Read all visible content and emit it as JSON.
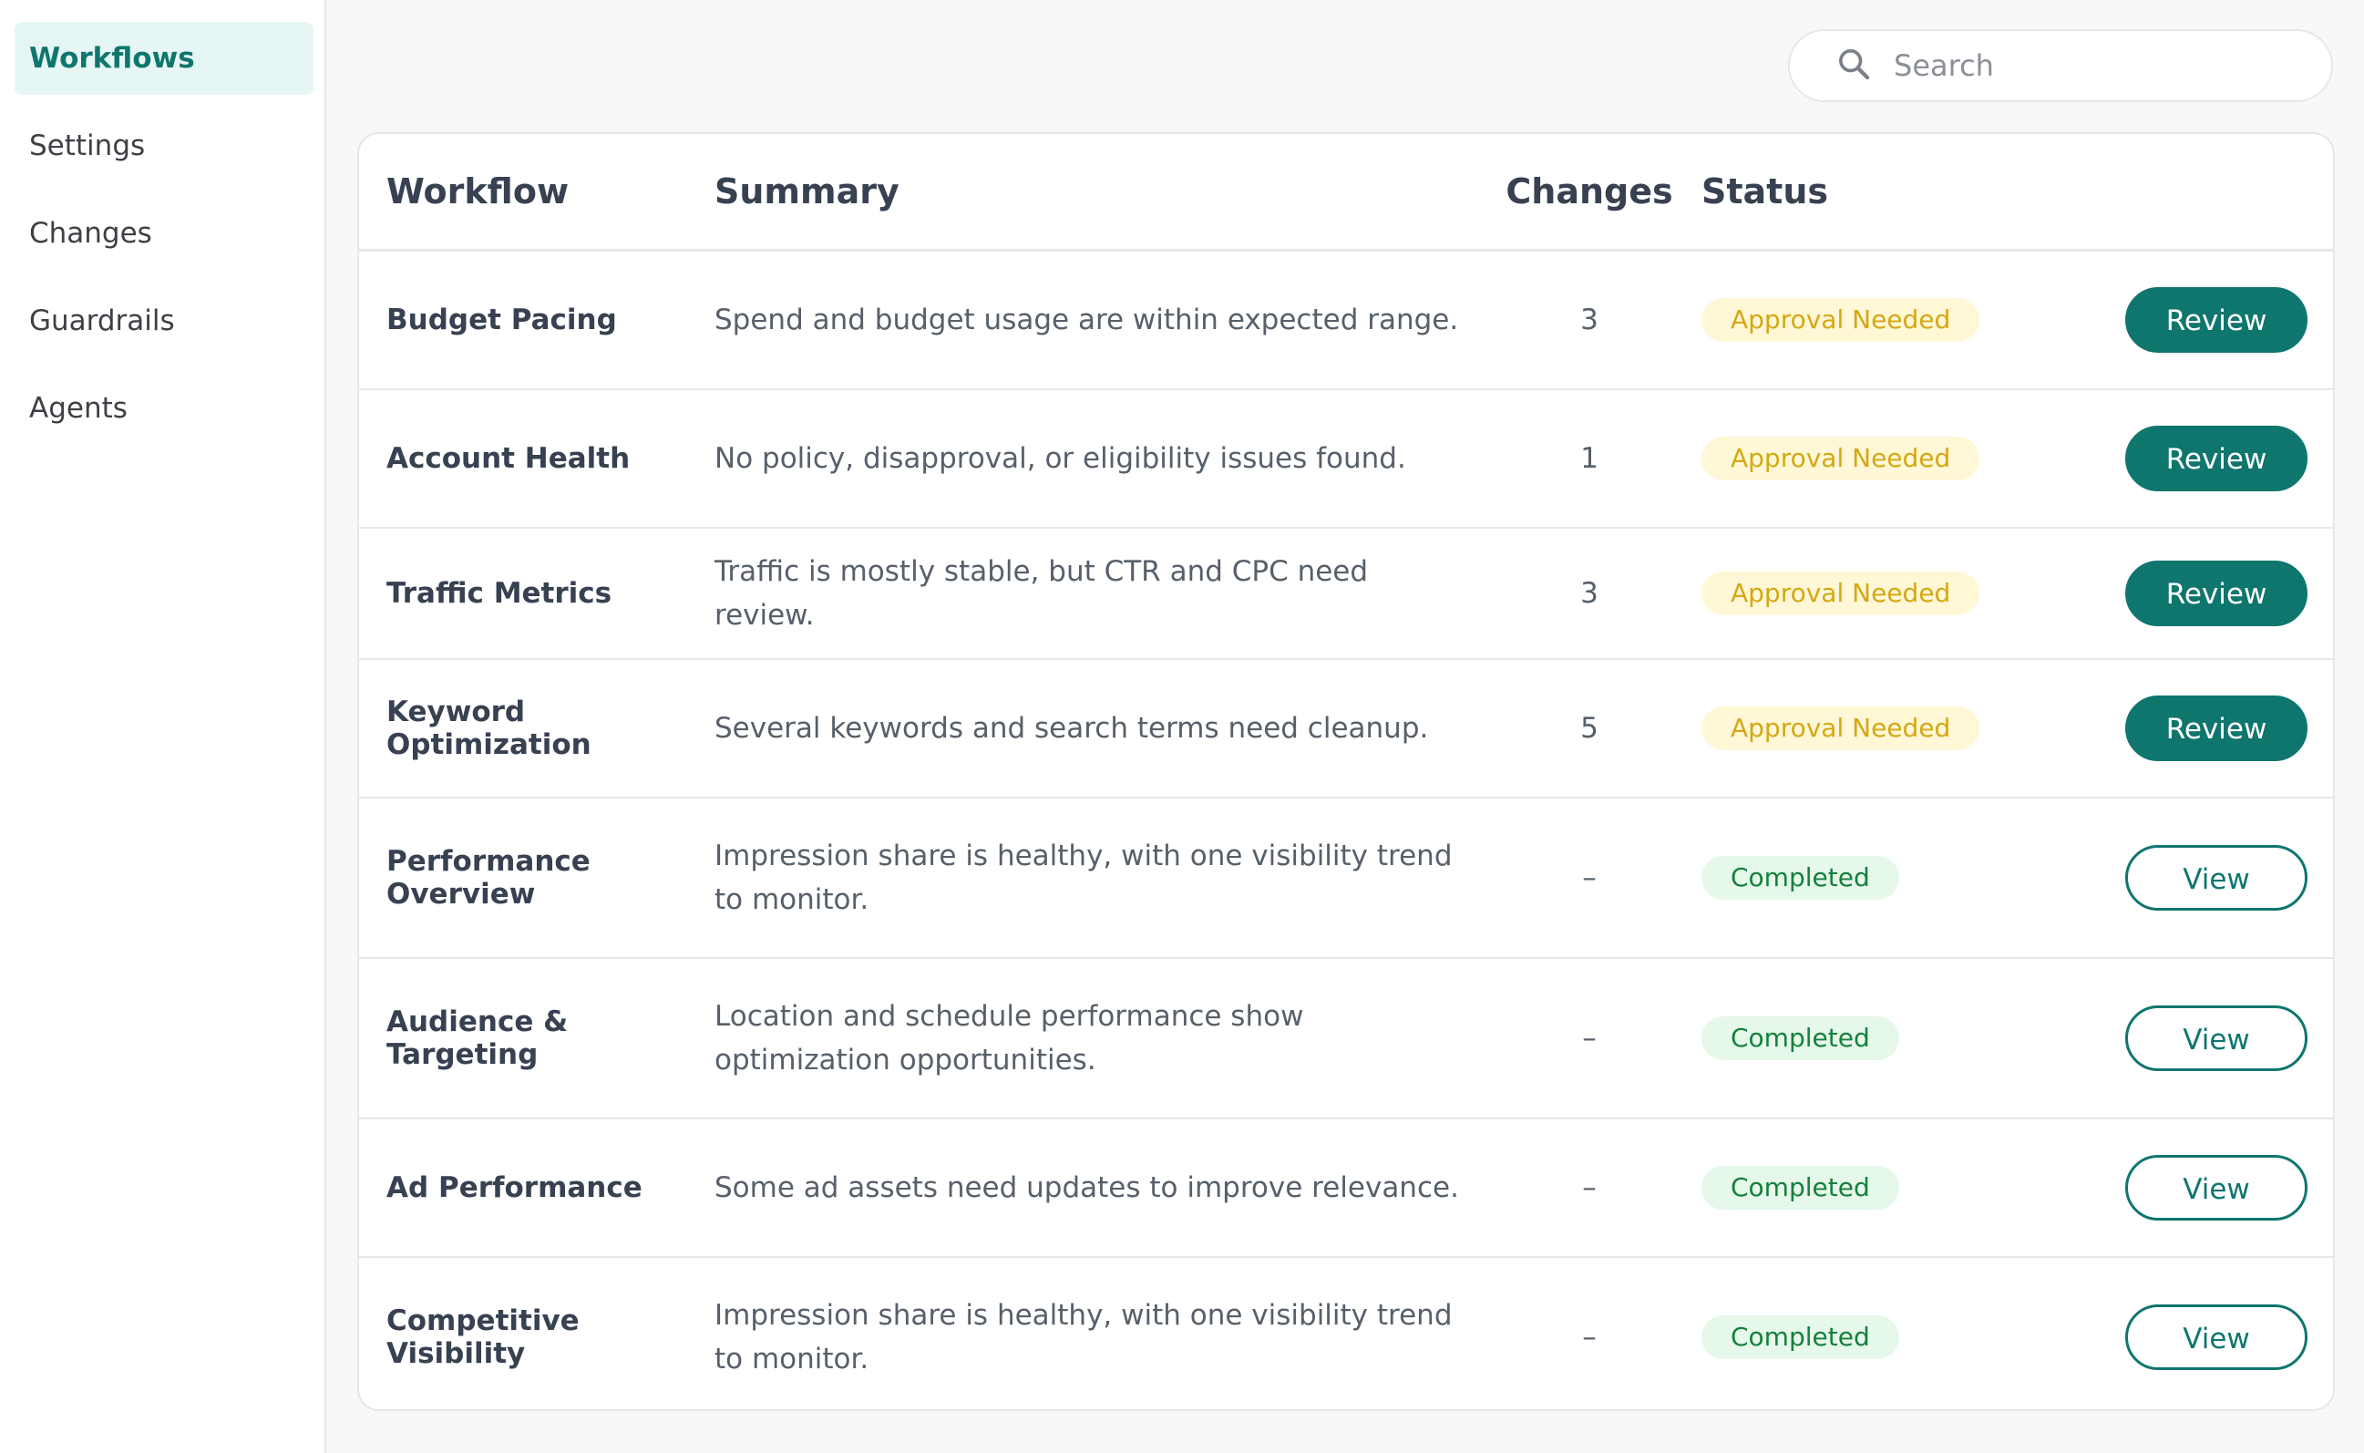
{
  "sidebar": {
    "items": [
      {
        "label": "Workflows",
        "active": true
      },
      {
        "label": "Settings"
      },
      {
        "label": "Changes"
      },
      {
        "label": "Guardrails"
      },
      {
        "label": "Agents"
      }
    ]
  },
  "search": {
    "placeholder": "Search",
    "icon": "search-icon"
  },
  "table": {
    "headers": {
      "workflow": "Workflow",
      "summary": "Summary",
      "changes": "Changes",
      "status": "Status"
    },
    "rows": [
      {
        "workflow": "Budget Pacing",
        "summary": "Spend and budget usage are within expected range.",
        "changes": "3",
        "status": "Approval Needed",
        "status_type": "approval",
        "action": "Review"
      },
      {
        "workflow": "Account Health",
        "summary": "No policy, disapproval, or eligibility issues found.",
        "changes": "1",
        "status": "Approval Needed",
        "status_type": "approval",
        "action": "Review"
      },
      {
        "workflow": "Traffic Metrics",
        "summary": "Traffic is mostly stable, but CTR and CPC need review.",
        "changes": "3",
        "status": "Approval Needed",
        "status_type": "approval",
        "action": "Review"
      },
      {
        "workflow": "Keyword Optimization",
        "summary": "Several keywords and search terms need cleanup.",
        "changes": "5",
        "status": "Approval Needed",
        "status_type": "approval",
        "action": "Review"
      },
      {
        "workflow": "Performance Overview",
        "summary": "Impression share is healthy, with one visibility trend to monitor.",
        "changes": "–",
        "status": "Completed",
        "status_type": "completed",
        "action": "View"
      },
      {
        "workflow": "Audience & Targeting",
        "summary": "Location and schedule performance show optimization opportunities.",
        "changes": "–",
        "status": "Completed",
        "status_type": "completed",
        "action": "View"
      },
      {
        "workflow": "Ad Performance",
        "summary": "Some ad assets need updates to improve relevance.",
        "changes": "–",
        "status": "Completed",
        "status_type": "completed",
        "action": "View"
      },
      {
        "workflow": "Competitive Visibility",
        "summary": "Impression share is healthy, with one visibility trend to monitor.",
        "changes": "–",
        "status": "Completed",
        "status_type": "completed",
        "action": "View"
      }
    ]
  },
  "colors": {
    "accent": "#0f766e",
    "approval_text": "#d4a814",
    "approval_bg": "#fff7d6",
    "completed_text": "#15803d",
    "completed_bg": "#e6f8ea"
  }
}
